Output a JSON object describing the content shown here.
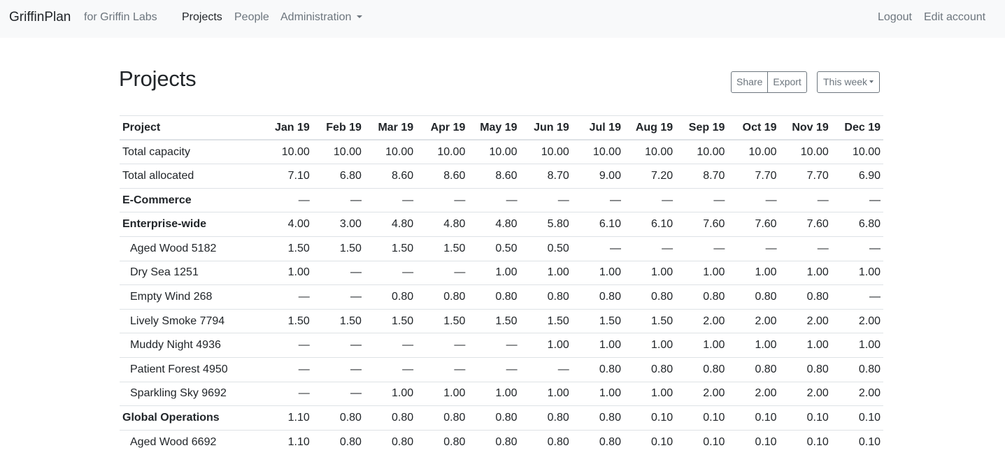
{
  "navbar": {
    "brand": "GriffinPlan",
    "org": "for Griffin Labs",
    "links": [
      "Projects",
      "People",
      "Administration"
    ],
    "right": [
      "Logout",
      "Edit account"
    ]
  },
  "page": {
    "title": "Projects",
    "share_label": "Share",
    "export_label": "Export",
    "period_label": "This week"
  },
  "table": {
    "project_header": "Project",
    "months": [
      "Jan 19",
      "Feb 19",
      "Mar 19",
      "Apr 19",
      "May 19",
      "Jun 19",
      "Jul 19",
      "Aug 19",
      "Sep 19",
      "Oct 19",
      "Nov 19",
      "Dec 19"
    ],
    "rows": [
      {
        "name": "Total capacity",
        "kind": "total",
        "values": [
          "10.00",
          "10.00",
          "10.00",
          "10.00",
          "10.00",
          "10.00",
          "10.00",
          "10.00",
          "10.00",
          "10.00",
          "10.00",
          "10.00"
        ]
      },
      {
        "name": "Total allocated",
        "kind": "total",
        "values": [
          "7.10",
          "6.80",
          "8.60",
          "8.60",
          "8.60",
          "8.70",
          "9.00",
          "7.20",
          "8.70",
          "7.70",
          "7.70",
          "6.90"
        ]
      },
      {
        "name": "E-Commerce",
        "kind": "group",
        "values": [
          "—",
          "—",
          "—",
          "—",
          "—",
          "—",
          "—",
          "—",
          "—",
          "—",
          "—",
          "—"
        ]
      },
      {
        "name": "Enterprise-wide",
        "kind": "group",
        "values": [
          "4.00",
          "3.00",
          "4.80",
          "4.80",
          "4.80",
          "5.80",
          "6.10",
          "6.10",
          "7.60",
          "7.60",
          "7.60",
          "6.80"
        ]
      },
      {
        "name": "Aged Wood 5182",
        "kind": "sub",
        "values": [
          "1.50",
          "1.50",
          "1.50",
          "1.50",
          "0.50",
          "0.50",
          "—",
          "—",
          "—",
          "—",
          "—",
          "—"
        ]
      },
      {
        "name": "Dry Sea 1251",
        "kind": "sub",
        "values": [
          "1.00",
          "—",
          "—",
          "—",
          "1.00",
          "1.00",
          "1.00",
          "1.00",
          "1.00",
          "1.00",
          "1.00",
          "1.00"
        ]
      },
      {
        "name": "Empty Wind 268",
        "kind": "sub",
        "values": [
          "—",
          "—",
          "0.80",
          "0.80",
          "0.80",
          "0.80",
          "0.80",
          "0.80",
          "0.80",
          "0.80",
          "0.80",
          "—"
        ]
      },
      {
        "name": "Lively Smoke 7794",
        "kind": "sub",
        "values": [
          "1.50",
          "1.50",
          "1.50",
          "1.50",
          "1.50",
          "1.50",
          "1.50",
          "1.50",
          "2.00",
          "2.00",
          "2.00",
          "2.00"
        ]
      },
      {
        "name": "Muddy Night 4936",
        "kind": "sub",
        "values": [
          "—",
          "—",
          "—",
          "—",
          "—",
          "1.00",
          "1.00",
          "1.00",
          "1.00",
          "1.00",
          "1.00",
          "1.00"
        ]
      },
      {
        "name": "Patient Forest 4950",
        "kind": "sub",
        "values": [
          "—",
          "—",
          "—",
          "—",
          "—",
          "—",
          "0.80",
          "0.80",
          "0.80",
          "0.80",
          "0.80",
          "0.80"
        ]
      },
      {
        "name": "Sparkling Sky 9692",
        "kind": "sub",
        "values": [
          "—",
          "—",
          "1.00",
          "1.00",
          "1.00",
          "1.00",
          "1.00",
          "1.00",
          "2.00",
          "2.00",
          "2.00",
          "2.00"
        ]
      },
      {
        "name": "Global Operations",
        "kind": "group",
        "values": [
          "1.10",
          "0.80",
          "0.80",
          "0.80",
          "0.80",
          "0.80",
          "0.80",
          "0.10",
          "0.10",
          "0.10",
          "0.10",
          "0.10"
        ]
      },
      {
        "name": "Aged Wood 6692",
        "kind": "sub",
        "values": [
          "1.10",
          "0.80",
          "0.80",
          "0.80",
          "0.80",
          "0.80",
          "0.80",
          "0.10",
          "0.10",
          "0.10",
          "0.10",
          "0.10"
        ]
      }
    ]
  }
}
